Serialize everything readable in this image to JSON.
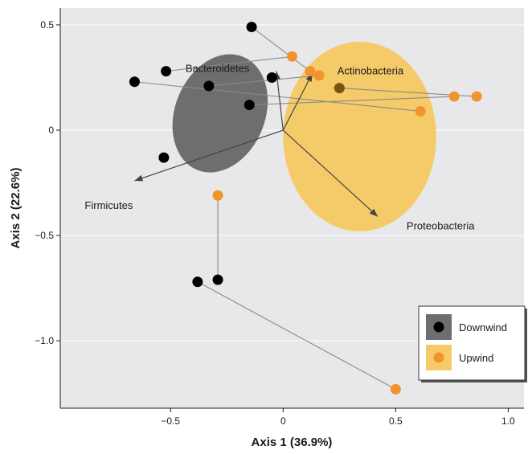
{
  "chart_data": {
    "type": "scatter",
    "xlabel": "Axis 1 (36.9%)",
    "ylabel": "Axis 2 (22.6%)",
    "xlim": [
      -0.99,
      1.07
    ],
    "ylim": [
      -1.32,
      0.58
    ],
    "x_ticks": [
      -0.5,
      0,
      0.5,
      1.0
    ],
    "x_tick_labels": [
      "−0.5",
      "0",
      "0.5",
      "1.0"
    ],
    "y_ticks": [
      0.5,
      0,
      -0.5,
      -1.0
    ],
    "y_tick_labels": [
      "0.5",
      "0",
      "−0.5",
      "−1.0"
    ],
    "grid": "horizontal",
    "colors": {
      "background": "#e8e8ea",
      "downwind": "#000000",
      "upwind": "#f0952b",
      "downwind_ellipse": "#6d6e70",
      "upwind_ellipse": "#f5cb69",
      "connector": "#8a8a8a",
      "arrow": "#444444",
      "overlap_point": "#7a5314"
    },
    "series": [
      {
        "name": "Downwind",
        "color": "#000000",
        "points": [
          [
            -0.14,
            0.49
          ],
          [
            -0.52,
            0.28
          ],
          [
            -0.66,
            0.23
          ],
          [
            -0.33,
            0.21
          ],
          [
            -0.05,
            0.25
          ],
          [
            -0.15,
            0.12
          ],
          [
            -0.53,
            -0.13
          ],
          [
            -0.29,
            -0.71
          ],
          [
            -0.38,
            -0.72
          ]
        ]
      },
      {
        "name": "Upwind",
        "color": "#f0952b",
        "points": [
          [
            0.04,
            0.35
          ],
          [
            0.12,
            0.28
          ],
          [
            0.16,
            0.26
          ],
          [
            0.76,
            0.16
          ],
          [
            0.86,
            0.16
          ],
          [
            0.61,
            0.09
          ],
          [
            -0.29,
            -0.31
          ],
          [
            0.5,
            -1.23
          ]
        ]
      }
    ],
    "overlap_points": [
      [
        0.25,
        0.2
      ]
    ],
    "pairs": [
      [
        [
          -0.14,
          0.49
        ],
        [
          0.12,
          0.28
        ]
      ],
      [
        [
          -0.52,
          0.28
        ],
        [
          0.04,
          0.35
        ]
      ],
      [
        [
          -0.66,
          0.23
        ],
        [
          0.61,
          0.09
        ]
      ],
      [
        [
          -0.33,
          0.21
        ],
        [
          0.16,
          0.26
        ]
      ],
      [
        [
          -0.15,
          0.12
        ],
        [
          0.76,
          0.16
        ]
      ],
      [
        [
          0.25,
          0.2
        ],
        [
          0.86,
          0.16
        ]
      ],
      [
        [
          -0.29,
          -0.71
        ],
        [
          -0.29,
          -0.31
        ]
      ],
      [
        [
          -0.38,
          -0.72
        ],
        [
          0.5,
          -1.23
        ]
      ]
    ],
    "arrows": [
      {
        "label": "Bacteroidetes",
        "x": -0.03,
        "y": 0.28
      },
      {
        "label": "Actinobacteria",
        "x": 0.13,
        "y": 0.27
      },
      {
        "label": "Firmicutes",
        "x": -0.66,
        "y": -0.24
      },
      {
        "label": "Proteobacteria",
        "x": 0.42,
        "y": -0.41
      }
    ],
    "arrow_origin": [
      0,
      0
    ],
    "ellipses": [
      {
        "group": "Downwind",
        "cx": -0.28,
        "cy": 0.08,
        "rx": 0.2,
        "ry": 0.29,
        "rotate": 22
      },
      {
        "group": "Upwind",
        "cx": 0.34,
        "cy": -0.03,
        "rx": 0.34,
        "ry": 0.45,
        "rotate": 0
      }
    ],
    "legend": {
      "position": "bottom-right",
      "entries": [
        {
          "label": "Downwind",
          "color": "#000000",
          "patch": "#6d6e70"
        },
        {
          "label": "Upwind",
          "color": "#f0952b",
          "patch": "#f5cb69"
        }
      ]
    }
  }
}
